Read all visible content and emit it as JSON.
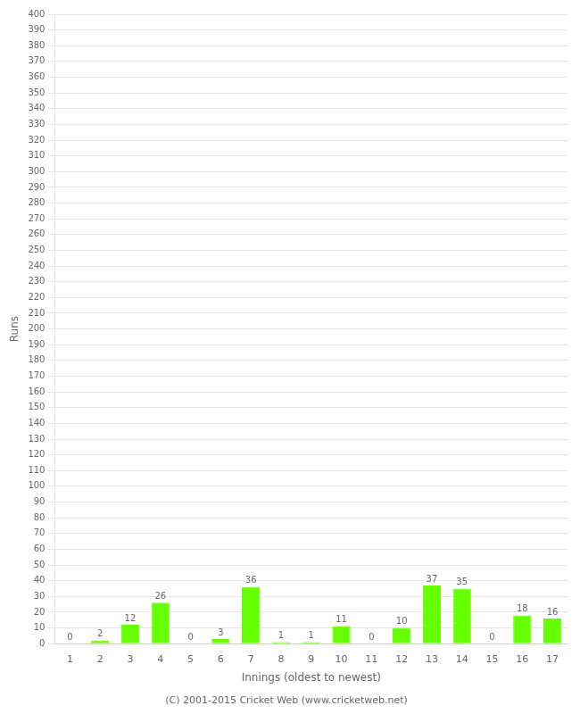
{
  "chart_data": {
    "type": "bar",
    "categories": [
      "1",
      "2",
      "3",
      "4",
      "5",
      "6",
      "7",
      "8",
      "9",
      "10",
      "11",
      "12",
      "13",
      "14",
      "15",
      "16",
      "17"
    ],
    "values": [
      0,
      2,
      12,
      26,
      0,
      3,
      36,
      1,
      1,
      11,
      0,
      10,
      37,
      35,
      0,
      18,
      16
    ],
    "color": "#66ff00",
    "x_label": "Innings (oldest to newest)",
    "y_label": "Runs",
    "ylim": [
      0,
      400
    ],
    "yticks": [
      0,
      10,
      20,
      30,
      40,
      50,
      60,
      70,
      80,
      90,
      100,
      110,
      120,
      130,
      140,
      150,
      160,
      170,
      180,
      190,
      200,
      210,
      220,
      230,
      240,
      250,
      260,
      270,
      280,
      290,
      300,
      310,
      320,
      330,
      340,
      350,
      360,
      370,
      380,
      390,
      400
    ],
    "grid": true,
    "data_labels": true,
    "annotations": [
      "(C) 2001-2015 Cricket Web (www.cricketweb.net)"
    ]
  }
}
